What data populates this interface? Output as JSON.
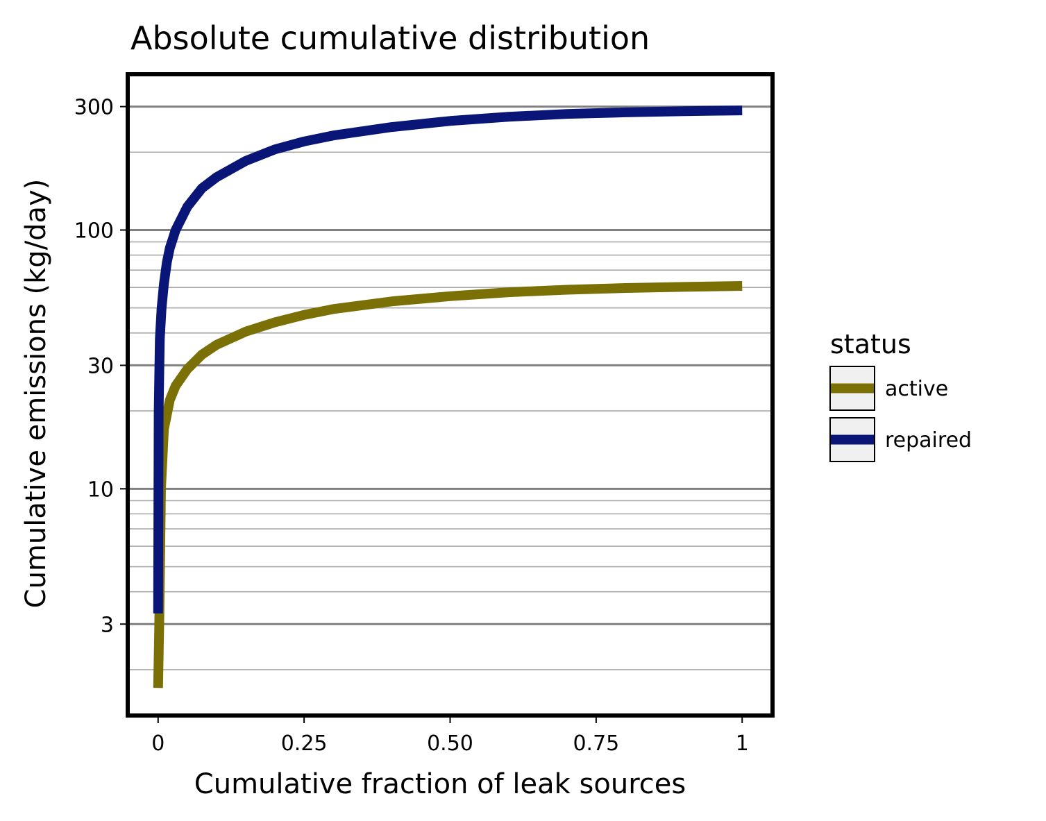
{
  "chart_data": {
    "type": "line",
    "title": "Absolute cumulative distribution",
    "xlabel": "Cumulative fraction of leak sources",
    "ylabel": "Cumulative emissions (kg/day)",
    "x_scale": "linear",
    "y_scale": "log",
    "xlim": [
      -0.052,
      1.052
    ],
    "ylim": [
      1.33,
      400
    ],
    "x_ticks": [
      {
        "value": 0,
        "label": "0"
      },
      {
        "value": 0.25,
        "label": "0.25"
      },
      {
        "value": 0.5,
        "label": "0.50"
      },
      {
        "value": 0.75,
        "label": "0.75"
      },
      {
        "value": 1,
        "label": "1"
      }
    ],
    "y_ticks": [
      {
        "value": 3,
        "label": "3"
      },
      {
        "value": 10,
        "label": "10"
      },
      {
        "value": 30,
        "label": "30"
      },
      {
        "value": 100,
        "label": "100"
      },
      {
        "value": 300,
        "label": "300"
      }
    ],
    "grid": {
      "major_y": true,
      "minor_y": true,
      "x": false
    },
    "legend": {
      "title": "status",
      "position": "right"
    },
    "series": [
      {
        "name": "active",
        "color": "#7a7005",
        "x": [
          0,
          0.002,
          0.005,
          0.01,
          0.02,
          0.03,
          0.05,
          0.075,
          0.1,
          0.15,
          0.2,
          0.25,
          0.3,
          0.4,
          0.5,
          0.6,
          0.7,
          0.8,
          0.9,
          1.0
        ],
        "y": [
          1.7,
          3.0,
          10.0,
          17.0,
          22.0,
          25.0,
          29.0,
          33.0,
          36.0,
          40.5,
          44.0,
          47.0,
          49.5,
          53.0,
          55.5,
          57.5,
          58.8,
          59.7,
          60.3,
          60.8
        ]
      },
      {
        "name": "repaired",
        "color": "#0a1677",
        "x": [
          0,
          0.001,
          0.003,
          0.006,
          0.01,
          0.015,
          0.02,
          0.03,
          0.05,
          0.075,
          0.1,
          0.15,
          0.2,
          0.25,
          0.3,
          0.4,
          0.5,
          0.6,
          0.7,
          0.8,
          0.9,
          1.0
        ],
        "y": [
          3.3,
          20.0,
          38.0,
          50.0,
          62.0,
          75.0,
          85.0,
          100.0,
          123.0,
          145.0,
          160.0,
          185.0,
          205.0,
          220.0,
          232.0,
          250.0,
          264.0,
          274.0,
          281.0,
          285.0,
          288.0,
          290.0
        ]
      }
    ]
  }
}
